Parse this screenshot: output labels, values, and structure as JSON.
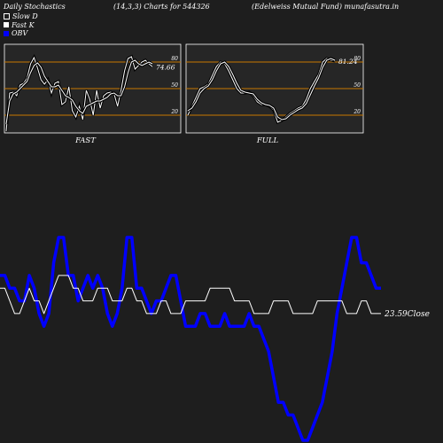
{
  "header": {
    "title": "Daily Stochastics",
    "params": "(14,3,3) Charts for 544326",
    "source": "(Edelweiss Mutual Fund) munafasutra.in"
  },
  "legend": [
    {
      "label": "Slow  D",
      "color": "#ffffff",
      "style": "outline"
    },
    {
      "label": "Fast K",
      "color": "#ffffff",
      "style": "filled"
    },
    {
      "label": "OBV",
      "color": "#0000ff",
      "style": "filled"
    }
  ],
  "colors": {
    "background": "#1e1e1e",
    "panel": "#262626",
    "guide": "#c87800",
    "obv": "#0000ff",
    "price": "#ffffff"
  },
  "chart_data": [
    {
      "type": "line",
      "title": "FAST",
      "ylim": [
        0,
        100
      ],
      "guides": [
        20,
        50,
        80
      ],
      "tick_labels": [
        "20",
        "50",
        "80"
      ],
      "last_value_label": "74.66",
      "series": [
        {
          "name": "Fast K",
          "values": [
            2,
            45,
            46,
            42,
            54,
            56,
            62,
            78,
            85,
            73,
            60,
            55,
            60,
            45,
            56,
            58,
            32,
            35,
            52,
            25,
            18,
            30,
            15,
            48,
            38,
            20,
            48,
            28,
            42,
            45,
            46,
            44,
            30,
            48,
            70,
            84,
            86,
            72,
            76,
            80,
            82,
            78,
            74.66
          ]
        },
        {
          "name": "Slow D",
          "values": [
            10,
            36,
            44,
            46,
            50,
            54,
            58,
            68,
            76,
            79,
            74,
            64,
            58,
            52,
            52,
            54,
            48,
            42,
            40,
            37,
            30,
            25,
            22,
            30,
            32,
            34,
            36,
            36,
            38,
            40,
            44,
            45,
            42,
            42,
            52,
            68,
            80,
            82,
            78,
            76,
            78,
            80,
            78
          ]
        }
      ]
    },
    {
      "type": "line",
      "title": "FULL",
      "ylim": [
        0,
        100
      ],
      "guides": [
        20,
        50,
        80
      ],
      "tick_labels": [
        "20",
        "50",
        "80"
      ],
      "last_value_label": "81.24",
      "series": [
        {
          "name": "Full K",
          "values": [
            20,
            30,
            40,
            50,
            52,
            55,
            65,
            75,
            80,
            78,
            70,
            60,
            50,
            45,
            45,
            46,
            42,
            35,
            32,
            32,
            30,
            26,
            12,
            14,
            18,
            22,
            25,
            28,
            30,
            38,
            50,
            58,
            66,
            80,
            84,
            82,
            81.24
          ]
        },
        {
          "name": "Full D",
          "values": [
            25,
            28,
            35,
            45,
            50,
            53,
            60,
            70,
            78,
            80,
            75,
            66,
            56,
            48,
            46,
            45,
            44,
            38,
            34,
            32,
            31,
            28,
            18,
            15,
            16,
            20,
            23,
            26,
            28,
            33,
            43,
            53,
            62,
            74,
            82,
            84,
            82
          ]
        }
      ]
    },
    {
      "type": "line",
      "title": "",
      "last_value_label": "23.59Close",
      "series": [
        {
          "name": "OBV",
          "values": [
            4,
            4,
            3,
            3,
            2,
            2,
            4,
            3,
            1,
            0,
            1,
            5,
            7,
            7,
            4,
            4,
            2,
            3,
            4,
            3,
            4,
            3,
            1,
            0,
            1,
            3,
            7,
            7,
            3,
            3,
            2,
            1,
            2,
            2,
            3,
            4,
            4,
            2,
            0,
            0,
            0,
            1,
            1,
            0,
            0,
            0,
            1,
            0,
            0,
            0,
            0,
            1,
            0,
            0,
            -1,
            -2,
            -4,
            -6,
            -6,
            -7,
            -7,
            -8,
            -9,
            -9,
            -8,
            -7,
            -6,
            -4,
            -2,
            1,
            3,
            5,
            7,
            7,
            5,
            5,
            4,
            3,
            3
          ]
        },
        {
          "name": "Close",
          "values": [
            3,
            3,
            2,
            1,
            1,
            2,
            3,
            2,
            2,
            1,
            2,
            3,
            4,
            4,
            4,
            3,
            3,
            2,
            2,
            2,
            3,
            3,
            3,
            2,
            2,
            2,
            3,
            3,
            2,
            2,
            1,
            1,
            1,
            2,
            2,
            1,
            1,
            1,
            2,
            2,
            2,
            2,
            2,
            3,
            3,
            3,
            3,
            3,
            2,
            2,
            2,
            2,
            1,
            1,
            1,
            1,
            2,
            2,
            2,
            2,
            1,
            1,
            1,
            1,
            1,
            2,
            2,
            2,
            2,
            2,
            2,
            1,
            1,
            1,
            2,
            2,
            1,
            1,
            1
          ]
        }
      ]
    }
  ]
}
